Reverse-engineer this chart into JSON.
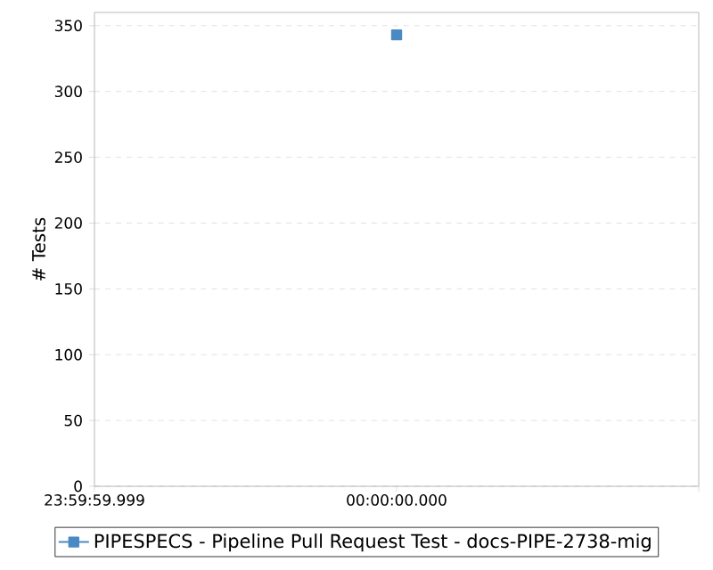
{
  "chart_data": {
    "type": "line",
    "ylabel": "# Tests",
    "categories": [
      "23:59:59.999",
      "00:00:00.000",
      null
    ],
    "series": [
      {
        "name": "PIPESPECS - Pipeline Pull Request Test - docs-PIPE-2738-mig",
        "color": "#4a8ac4",
        "values": [
          null,
          343,
          null
        ]
      }
    ],
    "ylim": [
      0,
      360
    ],
    "yticks": [
      0,
      50,
      100,
      150,
      200,
      250,
      300,
      350
    ],
    "grid": "y",
    "legend": "bottom",
    "marker": "square",
    "line_style": "solid"
  }
}
